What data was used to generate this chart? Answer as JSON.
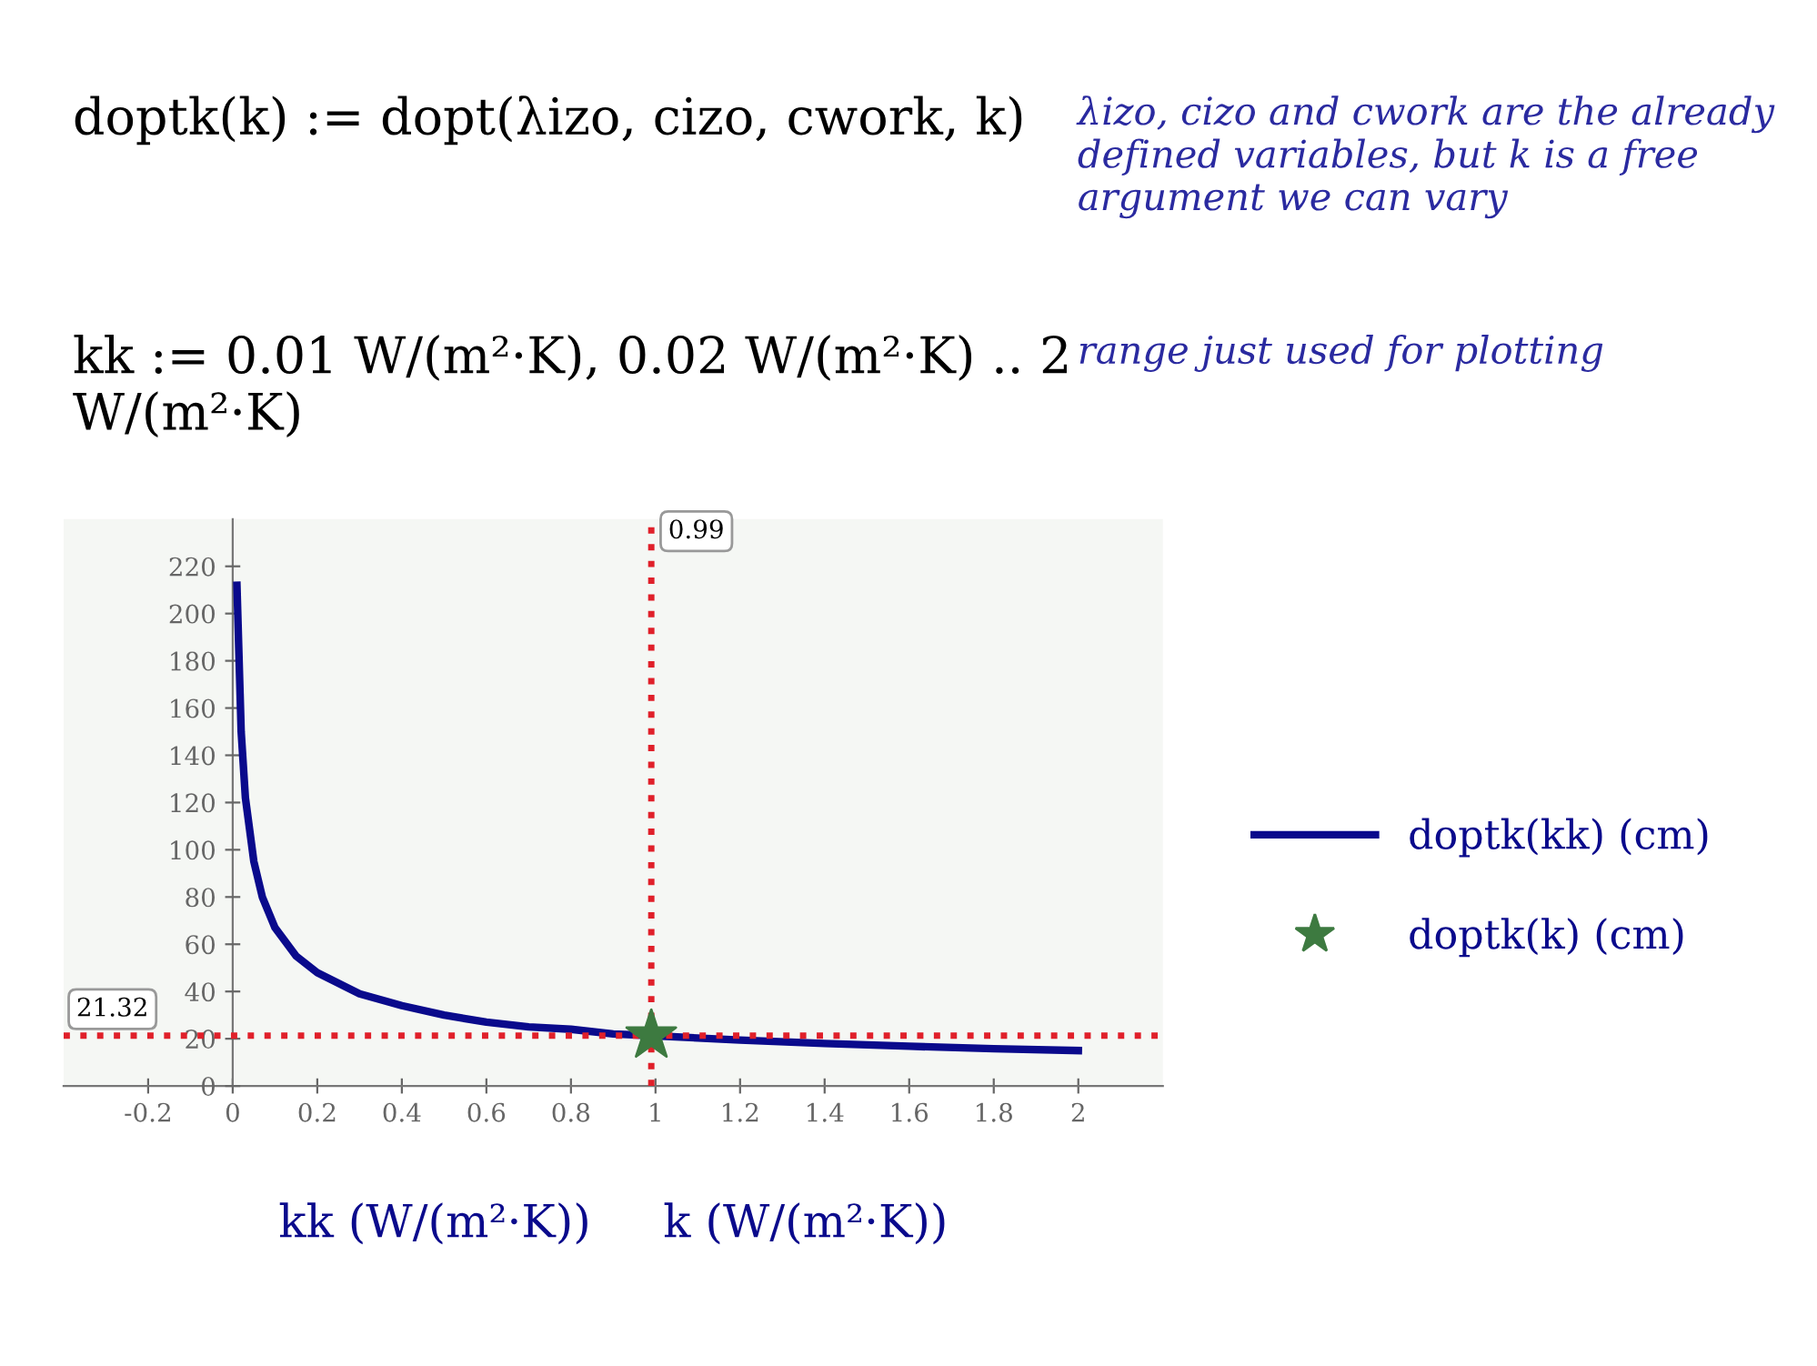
{
  "chart_data": {
    "type": "line",
    "xlabel": "kk (W/(m²·K))     k (W/(m²·K))",
    "annotations": [
      "doptk(k) := dopt(λizo, cizo, cwork, k)",
      "λizo, cizo and cwork are the already defined variables, but k is a free argument we can vary",
      "kk := 0.01 W/(m²·K), 0.02 W/(m²·K) .. 2 W/(m²·K)",
      "range just used for plotting"
    ],
    "series": [
      {
        "name": "doptk(kk) (cm)",
        "color": "#0a0a8c",
        "x": [
          0.01,
          0.02,
          0.03,
          0.05,
          0.07,
          0.1,
          0.15,
          0.2,
          0.3,
          0.4,
          0.5,
          0.6,
          0.7,
          0.8,
          0.9,
          0.99,
          1.2,
          1.4,
          1.6,
          1.8,
          2
        ],
        "values": [
          212,
          150,
          122,
          95,
          80,
          67,
          55,
          48,
          39,
          34,
          30,
          27,
          25,
          24,
          22,
          21.32,
          19.4,
          18,
          16.8,
          15.8,
          15
        ]
      },
      {
        "name": "doptk(k) (cm)",
        "type": "scatter",
        "marker": "star",
        "color": "#3d7a40",
        "x": [
          0.99
        ],
        "values": [
          21.32
        ]
      }
    ],
    "xlim": [
      -0.4,
      2.2
    ],
    "ylim": [
      0,
      240
    ],
    "xticks": [
      -0.2,
      0,
      0.2,
      0.4,
      0.6,
      0.8,
      1,
      1.2,
      1.4,
      1.6,
      1.8,
      2
    ],
    "yticks": [
      0,
      20,
      40,
      60,
      80,
      100,
      120,
      140,
      160,
      180,
      200,
      220
    ],
    "ref_lines": [
      {
        "axis": "x",
        "value": 0.99,
        "label": "0.99",
        "color": "#e0202a",
        "line_style": "dotted"
      },
      {
        "axis": "y",
        "value": 21.32,
        "label": "21.32",
        "color": "#e0202a",
        "line_style": "dotted"
      }
    ],
    "grid": false,
    "legend": "right"
  }
}
